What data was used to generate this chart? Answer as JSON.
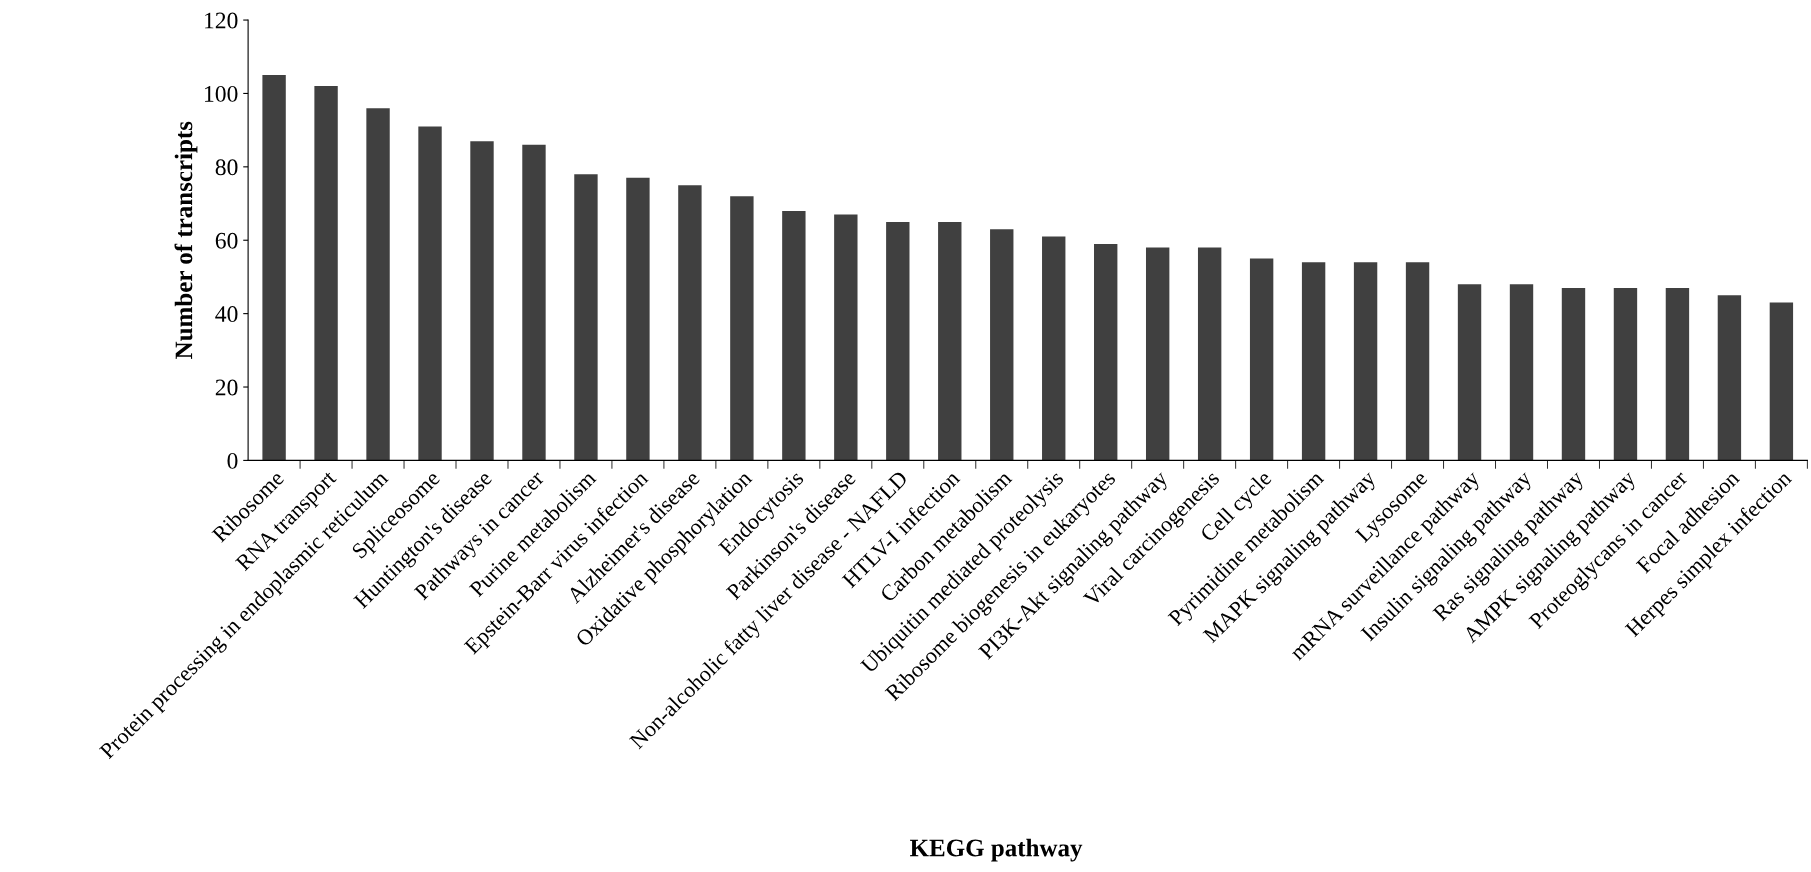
{
  "chart_data": {
    "type": "bar",
    "xlabel": "KEGG pathway",
    "ylabel": "Number of transcripts",
    "categories": [
      "Ribosome",
      "RNA transport",
      "Protein processing in endoplasmic reticulum",
      "Spliceosome",
      "Huntington's disease",
      "Pathways in cancer",
      "Purine metabolism",
      "Epstein-Barr virus infection",
      "Alzheimer's disease",
      "Oxidative phosphorylation",
      "Endocytosis",
      "Parkinson's disease",
      "Non-alcoholic fatty liver disease - NAFLD",
      "HTLV-I infection",
      "Carbon metabolism",
      "Ubiquitin mediated proteolysis",
      "Ribosome biogenesis in eukaryotes",
      "PI3K-Akt signaling pathway",
      "Viral carcinogenesis",
      "Cell cycle",
      "Pyrimidine metabolism",
      "MAPK signaling pathway",
      "Lysosome",
      "mRNA surveillance pathway",
      "Insulin signaling pathway",
      "Ras signaling pathway",
      "AMPK signaling pathway",
      "Proteoglycans in cancer",
      "Focal adhesion",
      "Herpes simplex infection"
    ],
    "values": [
      105,
      102,
      96,
      91,
      87,
      86,
      78,
      77,
      75,
      72,
      68,
      67,
      65,
      65,
      63,
      61,
      59,
      58,
      58,
      55,
      54,
      54,
      54,
      48,
      48,
      47,
      47,
      47,
      45,
      43
    ],
    "color": "#404040",
    "ylim": [
      0,
      120
    ],
    "yticks": [
      0,
      20,
      40,
      60,
      80,
      100,
      120
    ],
    "grid": false,
    "legend": false
  }
}
